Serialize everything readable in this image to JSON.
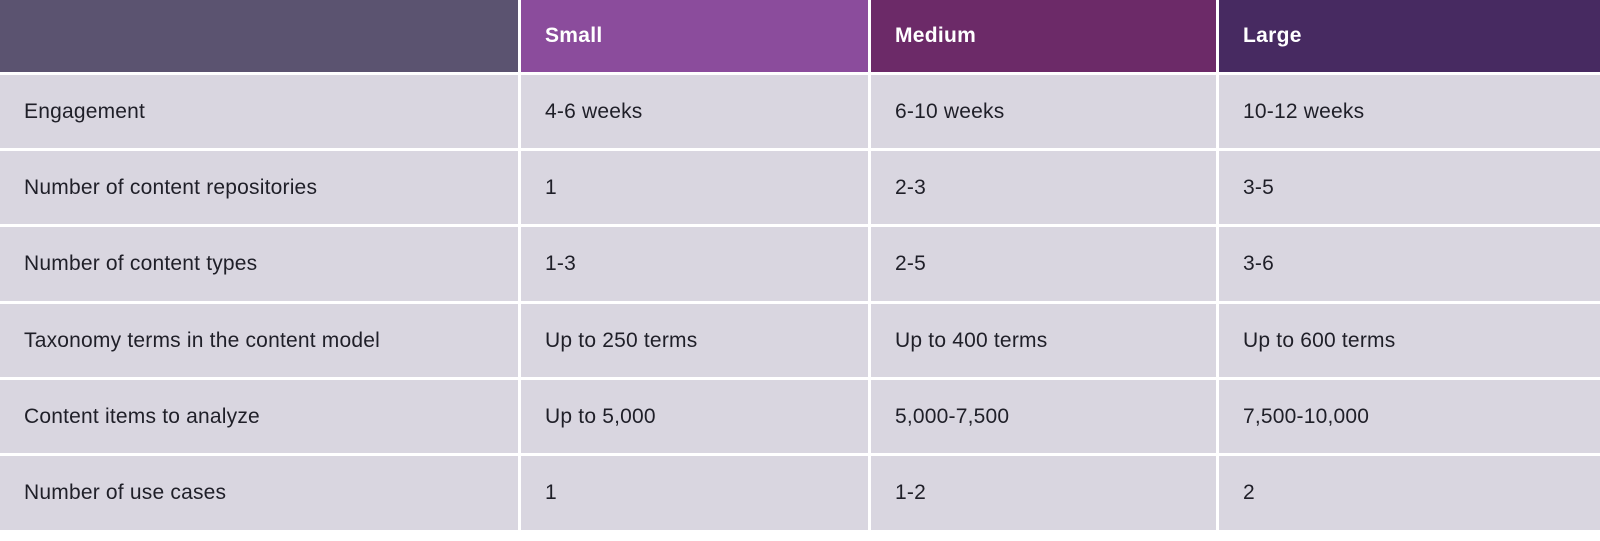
{
  "chart_data": {
    "type": "table",
    "title": "",
    "columns": [
      "",
      "Small",
      "Medium",
      "Large"
    ],
    "rows": [
      {
        "label": "Engagement",
        "small": "4-6 weeks",
        "medium": "6-10 weeks",
        "large": "10-12 weeks"
      },
      {
        "label": "Number of content repositories",
        "small": "1",
        "medium": "2-3",
        "large": "3-5"
      },
      {
        "label": "Number of content types",
        "small": "1-3",
        "medium": "2-5",
        "large": "3-6"
      },
      {
        "label": "Taxonomy terms in the content model",
        "small": "Up to 250 terms",
        "medium": "Up to 400 terms",
        "large": "Up to 600 terms"
      },
      {
        "label": "Content items to analyze",
        "small": "Up to 5,000",
        "medium": "5,000-7,500",
        "large": "7,500-10,000"
      },
      {
        "label": "Number of use cases",
        "small": "1",
        "medium": "1-2",
        "large": "2"
      }
    ]
  },
  "table": {
    "headers": {
      "empty": "",
      "small": "Small",
      "medium": "Medium",
      "large": "Large"
    },
    "rows": [
      {
        "label": "Engagement",
        "small": "4-6 weeks",
        "medium": "6-10 weeks",
        "large": "10-12 weeks"
      },
      {
        "label": "Number of content repositories",
        "small": "1",
        "medium": "2-3",
        "large": "3-5"
      },
      {
        "label": "Number of content types",
        "small": "1-3",
        "medium": "2-5",
        "large": "3-6"
      },
      {
        "label": "Taxonomy terms in the content model",
        "small": "Up to 250 terms",
        "medium": "Up to 400 terms",
        "large": "Up to 600 terms"
      },
      {
        "label": "Content items to analyze",
        "small": "Up to 5,000",
        "medium": "5,000-7,500",
        "large": "7,500-10,000"
      },
      {
        "label": "Number of use cases",
        "small": "1",
        "medium": "1-2",
        "large": "2"
      }
    ],
    "colors": {
      "header_empty_bg": "#5b5370",
      "header_small_bg": "#8b4c9c",
      "header_medium_bg": "#6c2a68",
      "header_large_bg": "#472a61",
      "body_cell_bg": "#d9d6e0",
      "body_text": "#1f1f28",
      "header_text": "#ffffff",
      "grid_gap": "#ffffff"
    }
  }
}
